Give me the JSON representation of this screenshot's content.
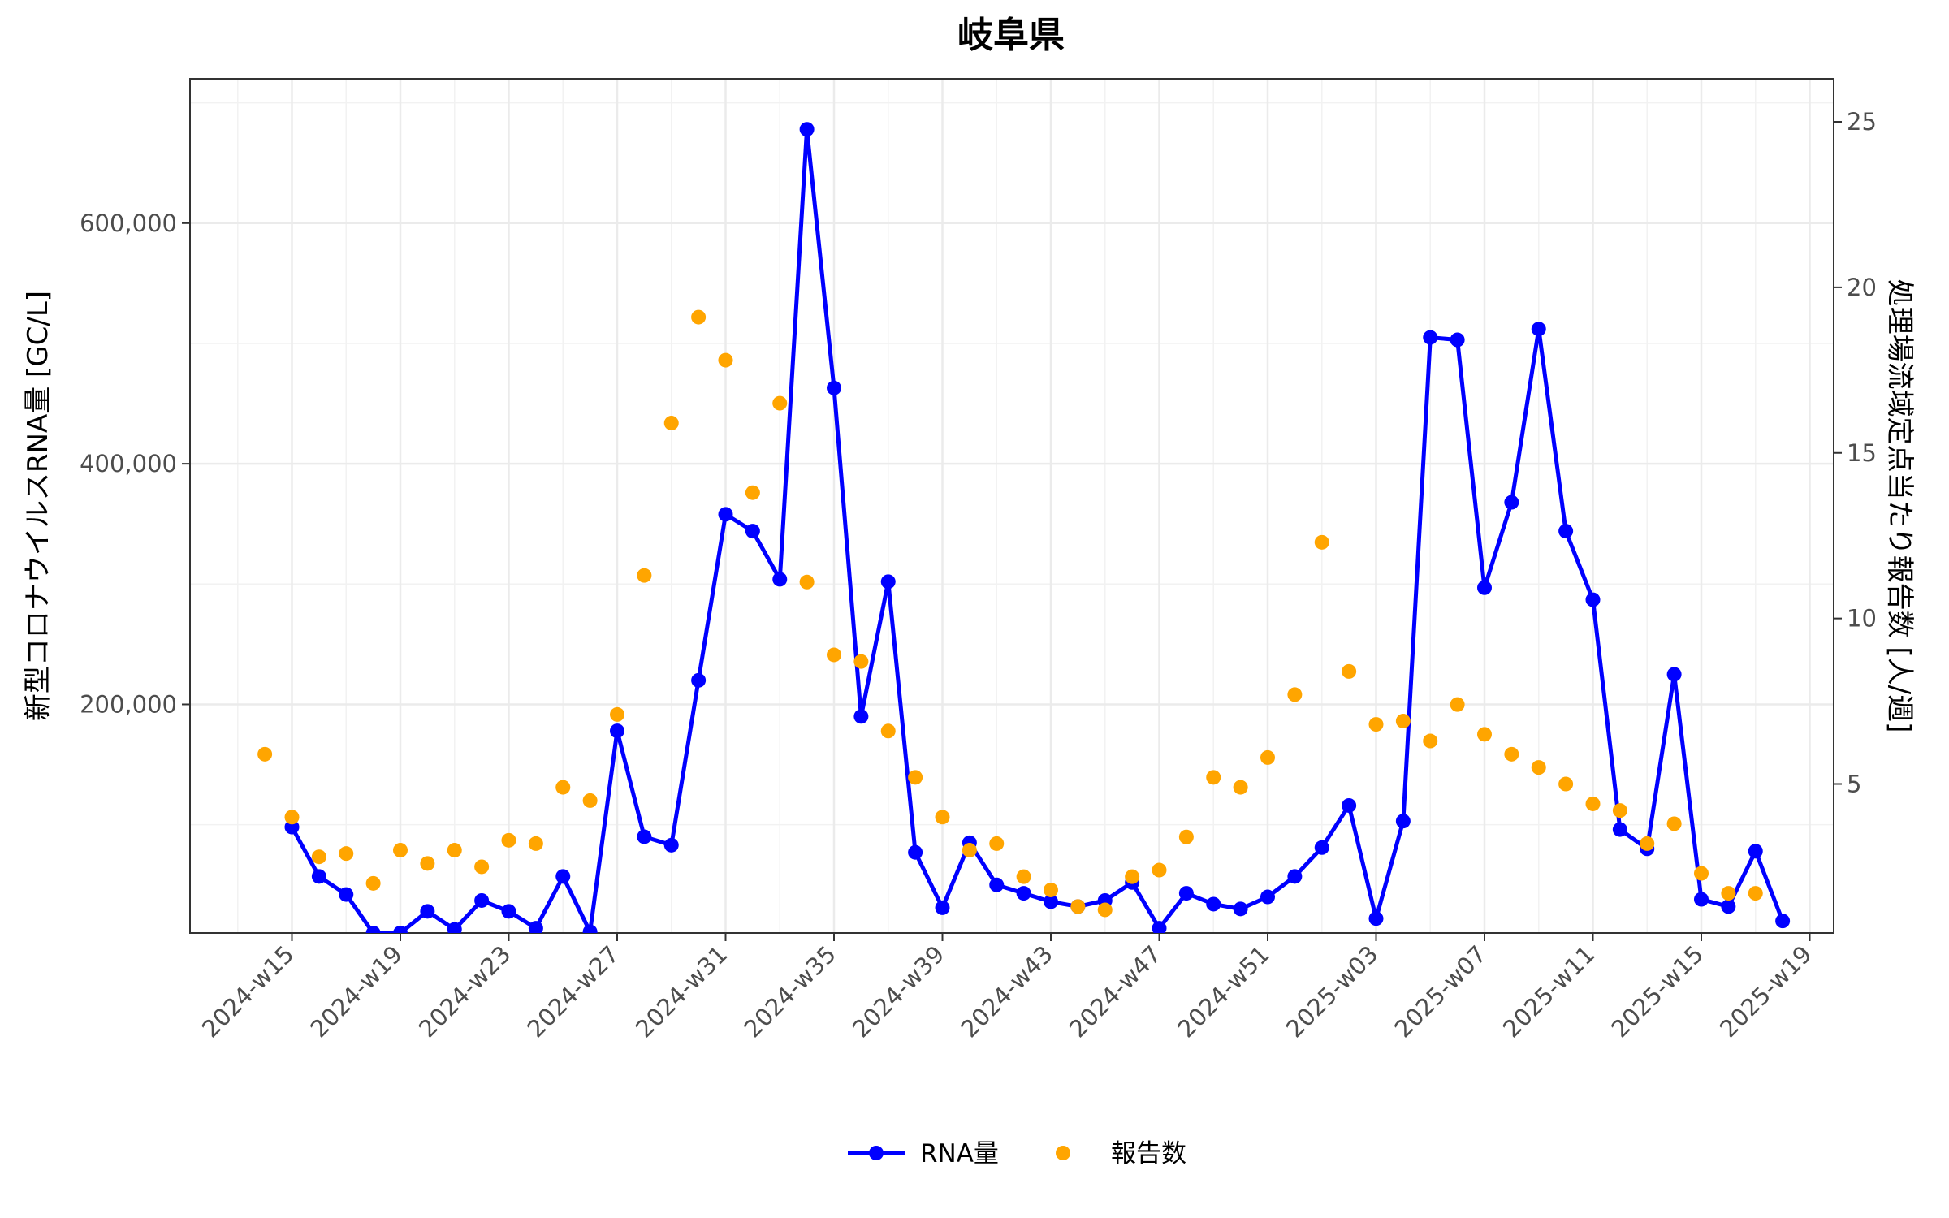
{
  "chart_data": {
    "type": "line",
    "title": "岐阜県",
    "ylabel": "新型コロナウイルスRNA量 [GC/L]",
    "ylabel_right": "処理場流域定点当たり報告数 [人/週]",
    "ylim": [
      10000,
      720000
    ],
    "ylim_right": [
      0.5,
      26.3
    ],
    "yticks": [
      200000,
      400000,
      600000
    ],
    "ytick_labels": [
      "200,000",
      "400,000",
      "600,000"
    ],
    "yticks_right": [
      5,
      10,
      15,
      20,
      25
    ],
    "ytick_labels_right": [
      "5",
      "10",
      "15",
      "20",
      "25"
    ],
    "xticks": [
      "2024-w15",
      "2024-w19",
      "2024-w23",
      "2024-w27",
      "2024-w31",
      "2024-w35",
      "2024-w39",
      "2024-w43",
      "2024-w47",
      "2024-w51",
      "2025-w03",
      "2025-w07",
      "2025-w11",
      "2025-w15",
      "2025-w19"
    ],
    "grid": true,
    "legend_position": "bottom",
    "series": [
      {
        "name": "RNA量",
        "kind": "line+markers",
        "axis": "left",
        "color": "#0000ff",
        "x": [
          "2024-w15",
          "2024-w16",
          "2024-w17",
          "2024-w18",
          "2024-w19",
          "2024-w20",
          "2024-w21",
          "2024-w22",
          "2024-w23",
          "2024-w24",
          "2024-w25",
          "2024-w26",
          "2024-w27",
          "2024-w28",
          "2024-w29",
          "2024-w30",
          "2024-w31",
          "2024-w32",
          "2024-w33",
          "2024-w34",
          "2024-w35",
          "2024-w36",
          "2024-w37",
          "2024-w38",
          "2024-w39",
          "2024-w40",
          "2024-w41",
          "2024-w42",
          "2024-w43",
          "2024-w44",
          "2024-w45",
          "2024-w46",
          "2024-w47",
          "2024-w48",
          "2024-w49",
          "2024-w50",
          "2024-w51",
          "2024-w52",
          "2025-w01",
          "2025-w02",
          "2025-w03",
          "2025-w04",
          "2025-w05",
          "2025-w06",
          "2025-w07",
          "2025-w08",
          "2025-w09",
          "2025-w10",
          "2025-w11",
          "2025-w12",
          "2025-w13",
          "2025-w14",
          "2025-w15",
          "2025-w16",
          "2025-w17",
          "2025-w18"
        ],
        "values": [
          98000,
          57000,
          42000,
          10000,
          10000,
          28000,
          13000,
          37000,
          28000,
          14000,
          57000,
          11000,
          178000,
          90000,
          83000,
          220000,
          358000,
          344000,
          304000,
          678000,
          463000,
          190000,
          302000,
          77000,
          31000,
          85000,
          50000,
          43000,
          36000,
          32000,
          37000,
          52000,
          14000,
          43000,
          34000,
          30000,
          40000,
          57000,
          81000,
          116000,
          22000,
          103000,
          505000,
          503000,
          297000,
          368000,
          512000,
          344000,
          287000,
          96000,
          80000,
          225000,
          38000,
          32000,
          78000,
          20000
        ]
      },
      {
        "name": "報告数",
        "kind": "markers",
        "axis": "right",
        "color": "#ffa500",
        "x": [
          "2024-w14",
          "2024-w15",
          "2024-w16",
          "2024-w17",
          "2024-w18",
          "2024-w19",
          "2024-w20",
          "2024-w21",
          "2024-w22",
          "2024-w23",
          "2024-w24",
          "2024-w25",
          "2024-w26",
          "2024-w27",
          "2024-w28",
          "2024-w29",
          "2024-w30",
          "2024-w31",
          "2024-w32",
          "2024-w33",
          "2024-w34",
          "2024-w35",
          "2024-w36",
          "2024-w37",
          "2024-w38",
          "2024-w39",
          "2024-w40",
          "2024-w41",
          "2024-w42",
          "2024-w43",
          "2024-w44",
          "2024-w45",
          "2024-w46",
          "2024-w47",
          "2024-w48",
          "2024-w49",
          "2024-w50",
          "2024-w51",
          "2024-w52",
          "2025-w01",
          "2025-w02",
          "2025-w03",
          "2025-w04",
          "2025-w05",
          "2025-w06",
          "2025-w07",
          "2025-w08",
          "2025-w09",
          "2025-w10",
          "2025-w11",
          "2025-w12",
          "2025-w13",
          "2025-w14",
          "2025-w15",
          "2025-w16",
          "2025-w17"
        ],
        "values": [
          5.9,
          4.0,
          2.8,
          2.9,
          2.0,
          3.0,
          2.6,
          3.0,
          2.5,
          3.3,
          3.2,
          4.9,
          4.5,
          7.1,
          11.3,
          15.9,
          19.1,
          17.8,
          13.8,
          16.5,
          11.1,
          8.9,
          8.7,
          6.6,
          5.2,
          4.0,
          3.0,
          3.2,
          2.2,
          1.8,
          1.3,
          1.2,
          2.2,
          2.4,
          3.4,
          5.2,
          4.9,
          5.8,
          7.7,
          12.3,
          8.4,
          6.8,
          6.9,
          6.3,
          7.4,
          6.5,
          5.9,
          5.5,
          5.0,
          4.4,
          4.2,
          3.2,
          3.8,
          2.3,
          1.7,
          1.7
        ]
      }
    ]
  }
}
